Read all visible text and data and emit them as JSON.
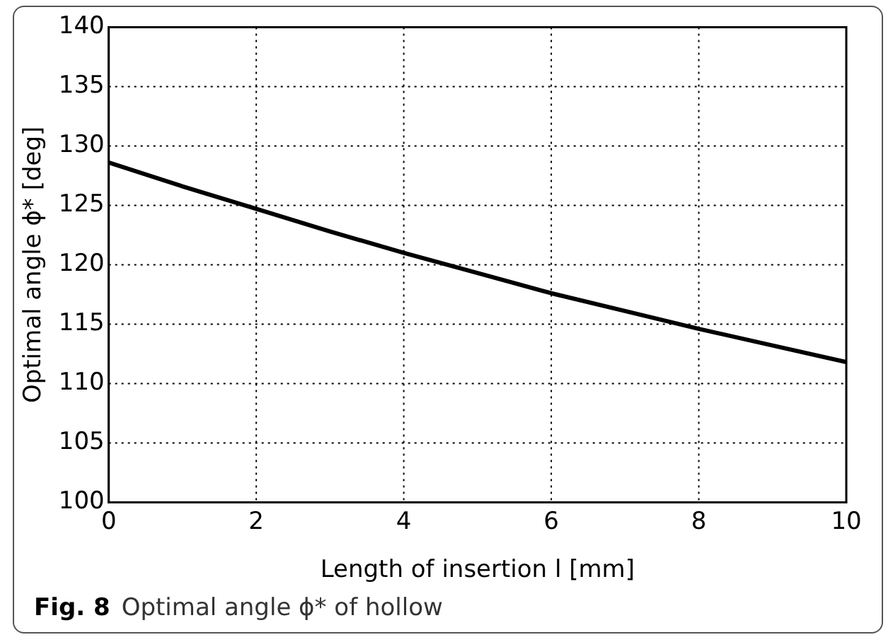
{
  "chart_data": {
    "type": "line",
    "xlabel": "Length of insertion l [mm]",
    "ylabel": "Optimal angle ϕ* [deg]",
    "annotations": [
      "Fig. 8",
      "Optimal angle ϕ* of hollow"
    ],
    "x": [
      0,
      1,
      2,
      3,
      4,
      5,
      6,
      7,
      8,
      9,
      10
    ],
    "series": [
      {
        "color": "#000000",
        "values": [
          128.6,
          126.6,
          124.7,
          122.8,
          121.0,
          119.3,
          117.6,
          116.1,
          114.6,
          113.2,
          111.8
        ]
      }
    ],
    "xlim": [
      0,
      10
    ],
    "xticks": [
      0,
      2,
      4,
      6,
      8,
      10
    ],
    "ylim": [
      100,
      140
    ],
    "yticks": [
      100,
      105,
      110,
      115,
      120,
      125,
      130,
      135,
      140
    ],
    "grid": true,
    "legend": false,
    "marker": "none",
    "line_style": "solid"
  }
}
